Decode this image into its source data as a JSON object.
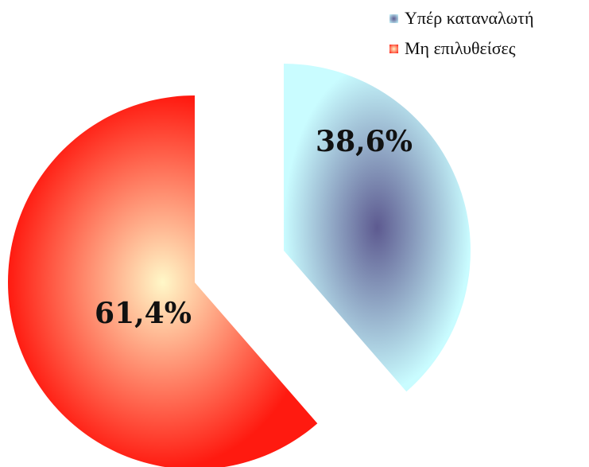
{
  "chart_data": {
    "type": "pie",
    "title": "",
    "legend_position": "top-right",
    "slices": [
      {
        "label": "Υπέρ καταναλωτή",
        "value": 38.6,
        "display": "38,6%",
        "color_center": "#5d5a90",
        "color_edge": "#c9fcff"
      },
      {
        "label": "Μη επιλυθείσες",
        "value": 61.4,
        "display": "61,4%",
        "color_center": "#fff8c8",
        "color_edge": "#ff1a10"
      }
    ]
  }
}
